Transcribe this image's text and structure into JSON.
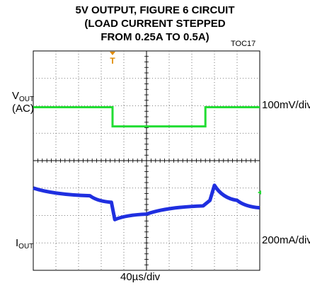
{
  "chart_data": {
    "type": "line",
    "title_lines": [
      "5V OUTPUT, FIGURE 6 CIRCUIT",
      "(LOAD CURRENT STEPPED",
      "FROM 0.25A TO 0.5A)"
    ],
    "tag": "TOC17",
    "channel1": {
      "label": "V",
      "sub": "OUT",
      "label2": "(AC)",
      "scale": "100mV/div",
      "color": "#1f2fe0"
    },
    "channel2": {
      "label": "I",
      "sub": "OUT",
      "scale": "200mA/div",
      "color": "#22dd33"
    },
    "timebase": "40µs/div",
    "grid": {
      "xdiv": 10,
      "ydiv": 8
    },
    "series": [
      {
        "name": "VOUT",
        "x": [
          0,
          2.5,
          3.45,
          3.6,
          5,
          7.5,
          7.8,
          8,
          9,
          10
        ],
        "y": [
          3.0,
          2.72,
          2.48,
          1.85,
          2.05,
          2.35,
          2.55,
          3.1,
          2.55,
          2.28
        ]
      },
      {
        "name": "IOUT",
        "x": [
          0,
          3.5,
          3.5,
          7.6,
          7.6,
          10
        ],
        "y": [
          5.95,
          5.95,
          5.25,
          5.25,
          5.95,
          5.95
        ]
      }
    ],
    "trigger_marker": "T"
  }
}
